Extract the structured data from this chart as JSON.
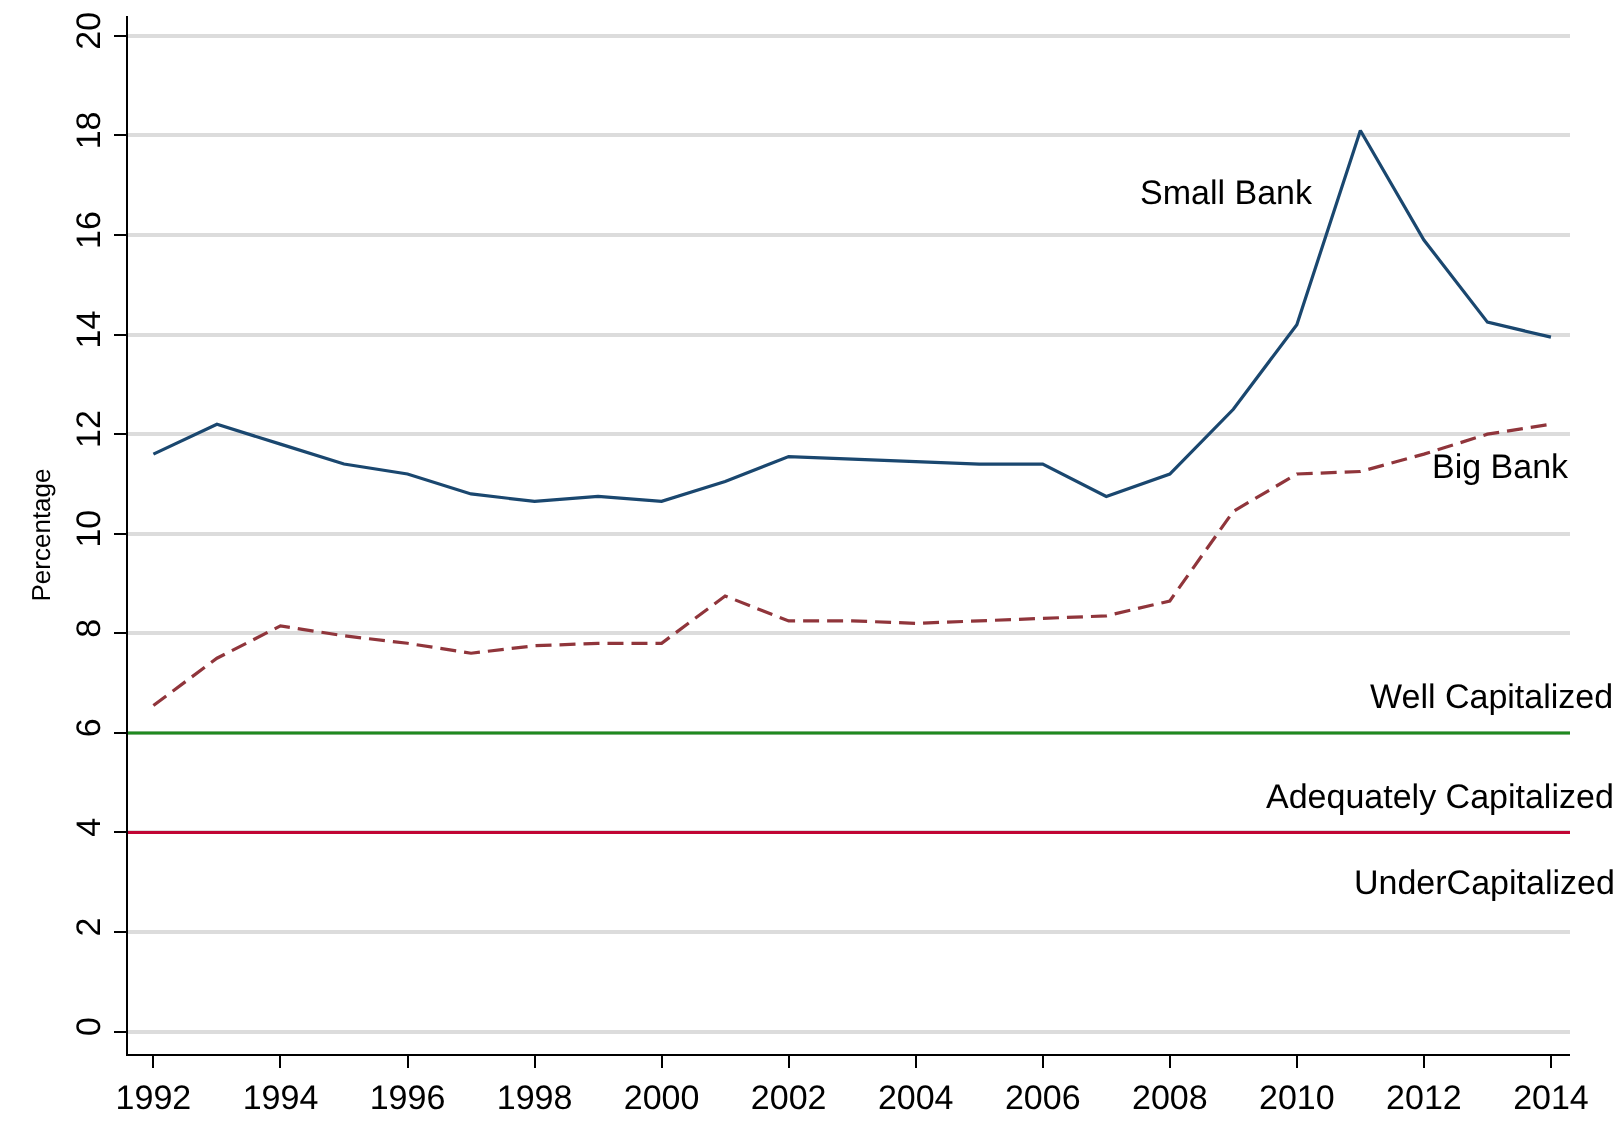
{
  "chart_data": {
    "type": "line",
    "ylabel": "Percentage",
    "x": [
      1992,
      1993,
      1994,
      1995,
      1996,
      1997,
      1998,
      1999,
      2000,
      2001,
      2002,
      2003,
      2004,
      2005,
      2006,
      2007,
      2008,
      2009,
      2010,
      2011,
      2012,
      2013,
      2014
    ],
    "series": [
      {
        "name": "Small Bank",
        "color": "#1a476f",
        "line_style": "solid",
        "values": [
          11.6,
          12.2,
          11.8,
          11.4,
          11.2,
          10.8,
          10.65,
          10.75,
          10.65,
          11.05,
          11.55,
          11.5,
          11.45,
          11.4,
          11.4,
          10.75,
          11.2,
          12.5,
          14.2,
          18.1,
          15.9,
          14.25,
          13.95
        ]
      },
      {
        "name": "Big Bank",
        "color": "#90353b",
        "line_style": "dashed",
        "values": [
          6.55,
          7.5,
          8.15,
          7.95,
          7.8,
          7.6,
          7.75,
          7.8,
          7.8,
          8.75,
          8.25,
          8.25,
          8.2,
          8.25,
          8.3,
          8.35,
          8.65,
          10.45,
          11.2,
          11.25,
          11.6,
          12.0,
          12.2
        ]
      }
    ],
    "xlim": [
      1991.6,
      2014.3
    ],
    "xticks": [
      1992,
      1994,
      1996,
      1998,
      2000,
      2002,
      2004,
      2006,
      2008,
      2010,
      2012,
      2014
    ],
    "ylim": [
      -0.45,
      20.4
    ],
    "yticks": [
      0,
      2,
      4,
      6,
      8,
      10,
      12,
      14,
      16,
      18,
      20
    ],
    "ref_lines": [
      {
        "axis": "y",
        "value": 6,
        "label": "Well Capitalized",
        "color": "#1f8a1f"
      },
      {
        "axis": "y",
        "value": 4,
        "label": "Adequately Capitalized",
        "color": "#c10534"
      }
    ],
    "annotations": [
      "UnderCapitalized"
    ],
    "grid": "y",
    "legend": false,
    "marker": "none"
  }
}
